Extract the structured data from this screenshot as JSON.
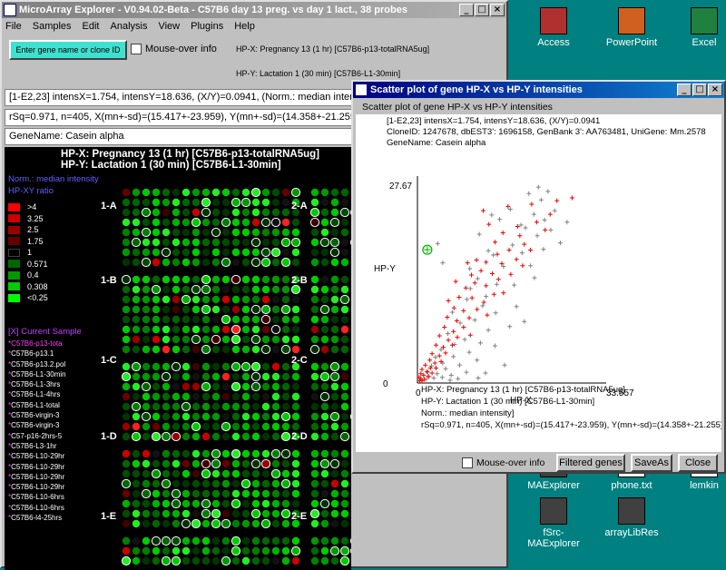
{
  "desktop": {
    "icons": [
      {
        "label": "Access",
        "color": "#b03030"
      },
      {
        "label": "PowerPoint",
        "color": "#d06020"
      },
      {
        "label": "Excel",
        "color": "#208040"
      },
      {
        "label": "MAExplorer",
        "color": "#404040"
      },
      {
        "label": "phone.txt",
        "color": "#ffffff"
      },
      {
        "label": "lemkin",
        "color": "#ffffff"
      },
      {
        "label": "fSrc-MAExplorer",
        "color": "#404040"
      },
      {
        "label": "arrayLibRes",
        "color": "#404040"
      }
    ]
  },
  "main": {
    "title": "MicroArray Explorer - V0.94.02-Beta - C57B6 day 13 preg. vs day 1 lact., 38 probes",
    "menu": [
      "File",
      "Samples",
      "Edit",
      "Analysis",
      "View",
      "Plugins",
      "Help"
    ],
    "enter_gene_button": "Enter gene name or clone ID",
    "mouseover_label": "Mouse-over info",
    "hp_x_line": "HP-X: Pregnancy 13  (1 hr) [C57B6-p13-totalRNA5ug]",
    "hp_y_line": "HP-Y: Lactation 1  (30 min) [C57B6-L1-30min]",
    "info1": "[1-E2,23] intensX=1.754, intensY=18.636, (X/Y)=0.0941, (Norm.: median intensity)",
    "info2": "rSq=0.971, n=405, X(mn+-sd)=(15.417+-23.959), Y(mn+-sd)=(14.358+-21.255)",
    "info3": "GeneName: Casein alpha",
    "array": {
      "header_x": "HP-X: Pregnancy 13  (1 hr) [C57B6-p13-totalRNA5ug]",
      "header_y": "HP-Y: Lactation 1  (30 min) [C57B6-L1-30min]",
      "norm_label": "Norm.: median intensity",
      "ratio_label": "HP-XY ratio",
      "legend": [
        {
          "label": ">4",
          "color": "#ff0000"
        },
        {
          "label": "3.25",
          "color": "#cc0000"
        },
        {
          "label": "2.5",
          "color": "#990000"
        },
        {
          "label": "1.75",
          "color": "#660000"
        },
        {
          "label": "1",
          "color": "#000000"
        },
        {
          "label": "0.571",
          "color": "#006600"
        },
        {
          "label": "0.4",
          "color": "#009900"
        },
        {
          "label": "0.308",
          "color": "#00cc00"
        },
        {
          "label": "<0.25",
          "color": "#00ff00"
        }
      ],
      "current_sample_label": "[X] Current Sample",
      "samples": [
        "C57B6-p13-tota",
        "C57B6-p13.1",
        "C57B6-p13.2.pol",
        "C57B6-L1-30min",
        "C57B6-L1-3hrs",
        "C57B6-L1-4hrs",
        "C57B6-L1-total",
        "C57B6-virgin-3",
        "C57B6-virgin-3",
        "C57-p16-2hrs-5",
        "C57B6-L3-1hr",
        "C57B6-L10-29hr",
        "C57B6-L10-29hr",
        "C57B6-L10-29hr",
        "C57B6-L10-29hr",
        "C57B6-L10-6hrs",
        "C57B6-L10-6hrs",
        "C57B6-l4-25hrs"
      ],
      "grid_labels": [
        "1-A",
        "2-A",
        "1-B",
        "2-B",
        "1-C",
        "2-C",
        "1-D",
        "2-D",
        "1-E",
        "2-E"
      ]
    }
  },
  "scatter": {
    "title": "Scatter plot of gene HP-X vs HP-Y intensities",
    "subtitle": "Scatter plot of gene HP-X vs HP-Y intensities",
    "info1": "[1-E2,23] intensX=1.754, intensY=18.636, (X/Y)=0.0941",
    "info2": "CloneID: 1247678, dbEST3': 1696158, GenBank 3': AA763481, UniGene: Mm.2578",
    "info3": "GeneName: Casein alpha",
    "footer1": "HP-X: Pregnancy 13  (1 hr) [C57B6-p13-totalRNA5ug]",
    "footer2": "HP-Y: Lactation 1  (30 min) [C57B6-L1-30min]",
    "footer3": "Norm.: median intensity]",
    "footer4": "rSq=0.971, n=405, X(mn+-sd)=(15.417+-23.959), Y(mn+-sd)=(14.358+-21.255)",
    "mouseover_label": "Mouse-over info",
    "buttons": {
      "filtered": "Filtered genes",
      "saveas": "SaveAs",
      "close": "Close"
    }
  },
  "chart_data": {
    "type": "scatter",
    "xlabel": "HP-X",
    "ylabel": "HP-Y",
    "xmin_label": "0",
    "xmax_label": "33.557",
    "ymin_label": "0",
    "ymax_label": "27.67",
    "xlim": [
      0,
      33.557
    ],
    "ylim": [
      0,
      27.67
    ],
    "highlight_point": {
      "x": 1.754,
      "y": 18.636,
      "color": "#00b000"
    },
    "series": [
      {
        "color": "#808080",
        "points": [
          [
            21.5,
            27.4
          ],
          [
            19.8,
            26.5
          ],
          [
            23.2,
            26.8
          ],
          [
            16.5,
            24.3
          ],
          [
            22.0,
            25.6
          ],
          [
            13.2,
            23.5
          ],
          [
            18.4,
            22.1
          ],
          [
            24.4,
            24.1
          ],
          [
            20.7,
            23.6
          ],
          [
            14.6,
            22.9
          ],
          [
            19.2,
            21.7
          ],
          [
            11.0,
            20.8
          ],
          [
            21.3,
            20.6
          ],
          [
            16.9,
            19.3
          ],
          [
            13.5,
            17.9
          ],
          [
            18.6,
            18.2
          ],
          [
            22.4,
            18.7
          ],
          [
            9.3,
            16.0
          ],
          [
            15.3,
            16.3
          ],
          [
            10.7,
            14.6
          ],
          [
            14.1,
            13.8
          ],
          [
            12.2,
            12.1
          ],
          [
            17.2,
            13.7
          ],
          [
            20.1,
            16.4
          ],
          [
            8.8,
            11.7
          ],
          [
            11.6,
            10.8
          ],
          [
            6.2,
            9.9
          ],
          [
            13.9,
            9.8
          ],
          [
            7.6,
            8.4
          ],
          [
            10.2,
            8.8
          ],
          [
            5.4,
            6.9
          ],
          [
            8.4,
            6.1
          ],
          [
            12.6,
            7.4
          ],
          [
            6.6,
            5.4
          ],
          [
            9.2,
            4.3
          ],
          [
            4.2,
            4.7
          ],
          [
            10.6,
            3.2
          ],
          [
            3.2,
            3.6
          ],
          [
            6.4,
            3.7
          ],
          [
            4.5,
            2.8
          ],
          [
            7.5,
            2.5
          ],
          [
            12.1,
            1.4
          ],
          [
            2.5,
            2.4
          ],
          [
            5.0,
            2.0
          ],
          [
            8.7,
            1.5
          ],
          [
            3.5,
            1.3
          ],
          [
            6.0,
            1.1
          ],
          [
            10.8,
            0.7
          ],
          [
            1.8,
            1.5
          ],
          [
            2.9,
            0.7
          ],
          [
            4.4,
            0.8
          ],
          [
            7.2,
            0.6
          ],
          [
            1.5,
            0.5
          ],
          [
            2.1,
            0.9
          ],
          [
            5.8,
            0.4
          ],
          [
            15.5,
            2.5
          ],
          [
            13.8,
            5.2
          ],
          [
            3.6,
            19.5
          ],
          [
            4.5,
            16.8
          ],
          [
            17.6,
            10.7
          ],
          [
            20.8,
            14.7
          ],
          [
            23.7,
            21.4
          ],
          [
            25.4,
            19.6
          ],
          [
            11.2,
            5.6
          ],
          [
            9.4,
            13.2
          ],
          [
            19.0,
            8.6
          ],
          [
            16.4,
            7.9
          ],
          [
            26.6,
            22.5
          ],
          [
            22.6,
            22.8
          ],
          [
            12.6,
            18.5
          ]
        ]
      },
      {
        "color": "#ee0000",
        "points": [
          [
            24.8,
            25.5
          ],
          [
            20.3,
            25.0
          ],
          [
            23.6,
            23.6
          ],
          [
            16.1,
            24.7
          ],
          [
            21.2,
            22.5
          ],
          [
            18.2,
            20.6
          ],
          [
            15.2,
            21.0
          ],
          [
            12.7,
            22.2
          ],
          [
            22.7,
            21.4
          ],
          [
            19.0,
            19.4
          ],
          [
            13.8,
            19.7
          ],
          [
            16.3,
            18.6
          ],
          [
            17.6,
            17.3
          ],
          [
            14.2,
            18.0
          ],
          [
            12.2,
            16.9
          ],
          [
            15.0,
            16.7
          ],
          [
            10.5,
            17.2
          ],
          [
            18.7,
            16.4
          ],
          [
            13.3,
            15.3
          ],
          [
            11.3,
            15.7
          ],
          [
            16.6,
            15.2
          ],
          [
            9.6,
            15.1
          ],
          [
            14.4,
            14.5
          ],
          [
            12.2,
            13.6
          ],
          [
            10.2,
            14.0
          ],
          [
            8.6,
            13.3
          ],
          [
            13.6,
            12.4
          ],
          [
            11.8,
            11.3
          ],
          [
            9.7,
            11.9
          ],
          [
            7.4,
            12.0
          ],
          [
            10.6,
            10.3
          ],
          [
            8.2,
            10.1
          ],
          [
            6.5,
            10.5
          ],
          [
            9.2,
            9.1
          ],
          [
            7.0,
            8.7
          ],
          [
            5.3,
            9.2
          ],
          [
            8.2,
            7.8
          ],
          [
            6.4,
            7.2
          ],
          [
            4.8,
            7.8
          ],
          [
            7.1,
            6.4
          ],
          [
            5.5,
            6.0
          ],
          [
            3.9,
            6.6
          ],
          [
            6.2,
            5.3
          ],
          [
            4.6,
            5.0
          ],
          [
            3.3,
            5.3
          ],
          [
            5.0,
            4.2
          ],
          [
            3.9,
            3.8
          ],
          [
            2.6,
            4.1
          ],
          [
            4.2,
            3.0
          ],
          [
            3.1,
            2.8
          ],
          [
            2.2,
            3.2
          ],
          [
            3.3,
            2.1
          ],
          [
            2.3,
            2.1
          ],
          [
            1.4,
            2.5
          ],
          [
            2.6,
            1.4
          ],
          [
            1.7,
            1.6
          ],
          [
            0.8,
            1.9
          ],
          [
            1.9,
            0.9
          ],
          [
            1.1,
            1.1
          ],
          [
            0.6,
            1.3
          ],
          [
            1.2,
            0.5
          ],
          [
            0.6,
            0.6
          ],
          [
            0.3,
            0.8
          ],
          [
            0.8,
            0.3
          ],
          [
            0.4,
            0.3
          ],
          [
            11.7,
            24.1
          ],
          [
            8.9,
            16.8
          ],
          [
            17.8,
            21.9
          ],
          [
            20.1,
            18.6
          ],
          [
            15.3,
            12.6
          ],
          [
            6.8,
            14.2
          ],
          [
            5.5,
            11.5
          ],
          [
            9.4,
            6.7
          ],
          [
            12.4,
            9.5
          ],
          [
            27.5,
            25.9
          ]
        ]
      }
    ]
  }
}
